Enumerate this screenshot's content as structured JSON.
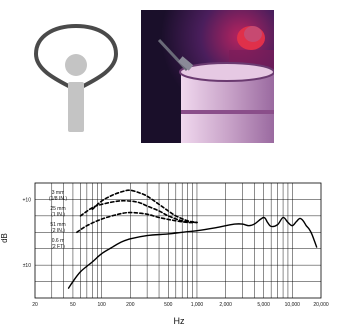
{
  "icon": {
    "name": "cardioid-polar-pattern-icon"
  },
  "photo": {
    "name": "microphone-on-drum-photo"
  },
  "chart_data": {
    "type": "line",
    "x_scale": "log",
    "xlim": [
      20,
      20000
    ],
    "ylim": [
      -20,
      15
    ],
    "x_ticks": [
      20,
      50,
      100,
      200,
      500,
      1000,
      2000,
      5000,
      10000,
      20000
    ],
    "x_tick_labels": [
      "20",
      "50",
      "100",
      "200",
      "500",
      "1,000",
      "2,000",
      "5,000",
      "10,000",
      "20,000"
    ],
    "y_ticks": [
      10,
      -10
    ],
    "y_tick_labels": [
      "+10",
      "±10"
    ],
    "xlabel": "Hz",
    "ylabel": "dB",
    "grid": true,
    "series": [
      {
        "name": "3 mm\n(1/8 IN.)",
        "style": "dashed",
        "points": [
          [
            80,
            7
          ],
          [
            100,
            9.5
          ],
          [
            130,
            11.3
          ],
          [
            170,
            12.5
          ],
          [
            200,
            12.8
          ],
          [
            250,
            12
          ],
          [
            300,
            11
          ],
          [
            400,
            8.5
          ],
          [
            500,
            6.5
          ],
          [
            600,
            5
          ],
          [
            800,
            3.5
          ],
          [
            1000,
            3
          ]
        ]
      },
      {
        "name": "25 mm\n(1 IN.)",
        "style": "dashed",
        "points": [
          [
            60,
            5
          ],
          [
            80,
            7.5
          ],
          [
            100,
            8.5
          ],
          [
            150,
            9.5
          ],
          [
            200,
            9.5
          ],
          [
            250,
            9
          ],
          [
            300,
            8
          ],
          [
            400,
            6.5
          ],
          [
            500,
            5
          ],
          [
            700,
            3.5
          ],
          [
            1000,
            3
          ]
        ]
      },
      {
        "name": "51 mm\n(2 IN.)",
        "style": "dashed",
        "points": [
          [
            55,
            0
          ],
          [
            70,
            2
          ],
          [
            100,
            4
          ],
          [
            150,
            5.5
          ],
          [
            200,
            6
          ],
          [
            300,
            5.5
          ],
          [
            400,
            4.5
          ],
          [
            600,
            3.5
          ],
          [
            800,
            3
          ],
          [
            1000,
            3
          ]
        ]
      },
      {
        "name": "0.6 m\n(2 FT)",
        "style": "solid",
        "points": [
          [
            45,
            -17
          ],
          [
            50,
            -15
          ],
          [
            60,
            -12
          ],
          [
            80,
            -9
          ],
          [
            100,
            -6.5
          ],
          [
            130,
            -4.5
          ],
          [
            160,
            -3
          ],
          [
            200,
            -2
          ],
          [
            300,
            -1
          ],
          [
            500,
            -0.5
          ],
          [
            700,
            0
          ],
          [
            1000,
            0.5
          ],
          [
            1500,
            1.3
          ],
          [
            2000,
            2
          ],
          [
            2500,
            2.5
          ],
          [
            3000,
            2.5
          ],
          [
            3500,
            2
          ],
          [
            4000,
            2.5
          ],
          [
            5000,
            4.5
          ],
          [
            5500,
            3
          ],
          [
            6000,
            1.8
          ],
          [
            7000,
            2.3
          ],
          [
            8000,
            4.5
          ],
          [
            9000,
            3
          ],
          [
            10000,
            2
          ],
          [
            11000,
            3.2
          ],
          [
            12000,
            4.2
          ],
          [
            13000,
            3.5
          ],
          [
            14000,
            2
          ],
          [
            15000,
            1
          ],
          [
            16000,
            -0.5
          ],
          [
            17000,
            -2.5
          ],
          [
            18000,
            -4.5
          ]
        ]
      }
    ]
  }
}
